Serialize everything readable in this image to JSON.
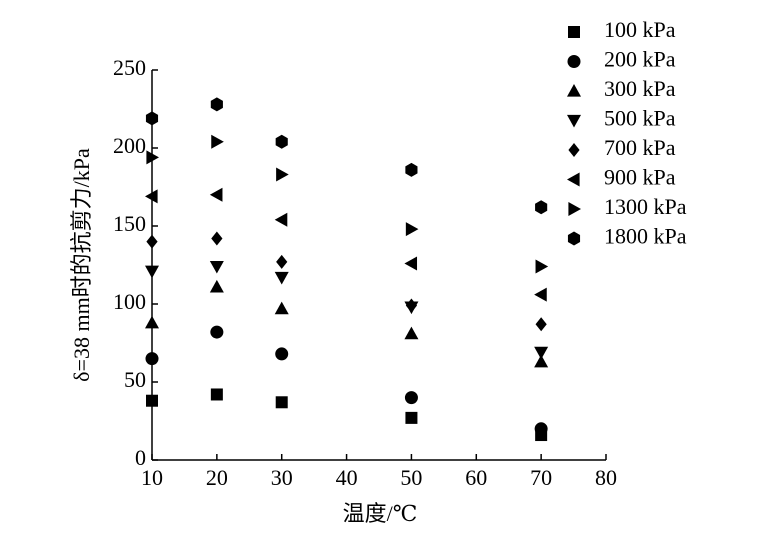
{
  "chart_data": {
    "type": "scatter",
    "x_label": "温度/℃",
    "y_label": "δ=38 mm时的抗剪力/kPa",
    "x": [
      10,
      20,
      30,
      50,
      70
    ],
    "xlim": [
      10,
      80
    ],
    "xticks": [
      10,
      20,
      30,
      40,
      50,
      60,
      70,
      80
    ],
    "ylim": [
      0,
      250
    ],
    "yticks": [
      0,
      50,
      100,
      150,
      200,
      250
    ],
    "grid": false,
    "legend": "upper right",
    "series": [
      {
        "name": "100 kPa",
        "color": "#000000",
        "marker": "square",
        "values": [
          38,
          42,
          37,
          27,
          16
        ]
      },
      {
        "name": "200 kPa",
        "color": "#000000",
        "marker": "circle",
        "values": [
          65,
          82,
          68,
          40,
          20
        ]
      },
      {
        "name": "300 kPa",
        "color": "#000000",
        "marker": "triangle-up",
        "values": [
          88,
          111,
          97,
          81,
          63
        ]
      },
      {
        "name": "500 kPa",
        "color": "#000000",
        "marker": "triangle-down",
        "values": [
          121,
          124,
          117,
          98,
          69
        ]
      },
      {
        "name": "700 kPa",
        "color": "#000000",
        "marker": "diamond",
        "values": [
          140,
          142,
          127,
          99,
          87
        ]
      },
      {
        "name": "900 kPa",
        "color": "#000000",
        "marker": "triangle-left",
        "values": [
          169,
          170,
          154,
          126,
          106
        ]
      },
      {
        "name": "1300 kPa",
        "color": "#000000",
        "marker": "triangle-right",
        "values": [
          194,
          204,
          183,
          148,
          124
        ]
      },
      {
        "name": "1800 kPa",
        "color": "#000000",
        "marker": "hexagon",
        "values": [
          219,
          228,
          204,
          186,
          162
        ]
      }
    ]
  }
}
